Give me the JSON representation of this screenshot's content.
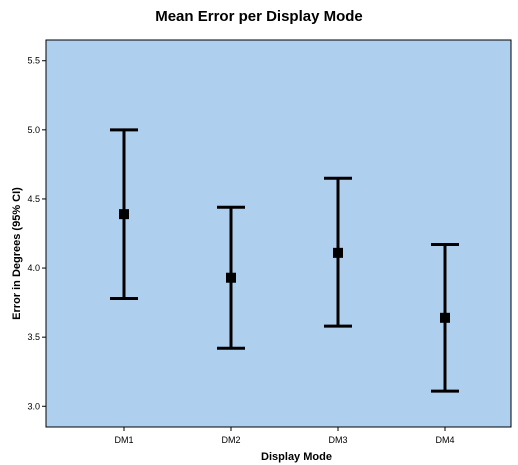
{
  "chart_data": {
    "type": "errorbar",
    "title": "Mean Error per Display Mode",
    "xlabel": "Display Mode",
    "ylabel": "Error in Degrees (95% CI)",
    "categories": [
      "DM1",
      "DM2",
      "DM3",
      "DM4"
    ],
    "means": [
      4.39,
      3.93,
      4.11,
      3.64
    ],
    "ci_upper": [
      5.0,
      4.44,
      4.65,
      4.17
    ],
    "ci_lower": [
      3.78,
      3.42,
      3.58,
      3.11
    ],
    "ylim": [
      2.85,
      5.65
    ],
    "yticks": [
      "3.0",
      "3.5",
      "4.0",
      "4.5",
      "5.0",
      "5.5"
    ],
    "grid": false,
    "legend": "none",
    "colors": {
      "plot_background": "#afcfee",
      "marks": "#000000",
      "page_background": "#ffffff"
    }
  }
}
